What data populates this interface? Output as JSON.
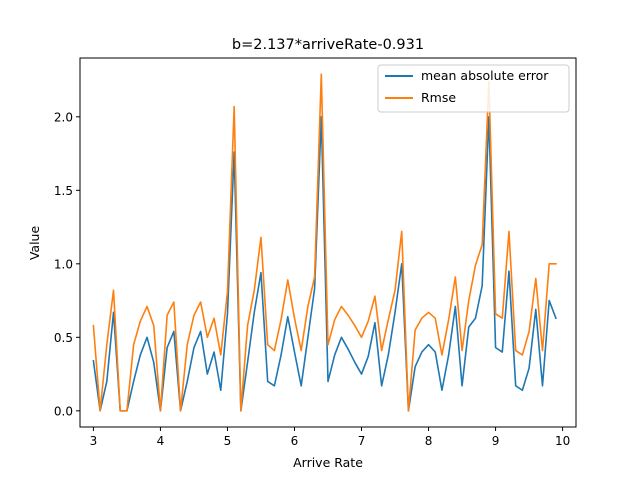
{
  "chart_data": {
    "type": "line",
    "title": "b=2.137*arriveRate-0.931",
    "xlabel": "Arrive Rate",
    "ylabel": "Value",
    "xlim": [
      2.8,
      10.2
    ],
    "ylim": [
      -0.11,
      2.4
    ],
    "xticks": [
      3,
      4,
      5,
      6,
      7,
      8,
      9,
      10
    ],
    "xtick_labels": [
      "3",
      "4",
      "5",
      "6",
      "7",
      "8",
      "9",
      "10"
    ],
    "yticks": [
      0.0,
      0.5,
      1.0,
      1.5,
      2.0
    ],
    "ytick_labels": [
      "0.0",
      "0.5",
      "1.0",
      "1.5",
      "2.0"
    ],
    "grid": false,
    "legend_position": "top-right",
    "x": [
      3.0,
      3.1,
      3.2,
      3.3,
      3.4,
      3.5,
      3.6,
      3.7,
      3.8,
      3.9,
      4.0,
      4.1,
      4.2,
      4.3,
      4.4,
      4.5,
      4.6,
      4.7,
      4.8,
      4.9,
      5.0,
      5.1,
      5.2,
      5.3,
      5.4,
      5.5,
      5.6,
      5.7,
      5.8,
      5.9,
      6.0,
      6.1,
      6.2,
      6.3,
      6.4,
      6.5,
      6.6,
      6.7,
      6.8,
      6.9,
      7.0,
      7.1,
      7.2,
      7.3,
      7.4,
      7.5,
      7.6,
      7.7,
      7.8,
      7.9,
      8.0,
      8.1,
      8.2,
      8.3,
      8.4,
      8.5,
      8.6,
      8.7,
      8.8,
      8.9,
      9.0,
      9.1,
      9.2,
      9.3,
      9.4,
      9.5,
      9.6,
      9.7,
      9.8,
      9.9
    ],
    "series": [
      {
        "name": "mean absolute error",
        "color": "#1f77b4",
        "values": [
          0.34,
          0.0,
          0.2,
          0.67,
          0.0,
          0.0,
          0.2,
          0.38,
          0.5,
          0.33,
          0.0,
          0.43,
          0.54,
          0.0,
          0.2,
          0.43,
          0.54,
          0.25,
          0.4,
          0.14,
          0.66,
          1.76,
          0.0,
          0.33,
          0.67,
          0.94,
          0.2,
          0.17,
          0.38,
          0.64,
          0.4,
          0.17,
          0.5,
          0.83,
          2.0,
          0.2,
          0.38,
          0.5,
          0.42,
          0.33,
          0.25,
          0.37,
          0.6,
          0.17,
          0.38,
          0.67,
          1.0,
          0.0,
          0.3,
          0.4,
          0.45,
          0.4,
          0.14,
          0.38,
          0.71,
          0.17,
          0.57,
          0.63,
          0.85,
          2.0,
          0.43,
          0.4,
          0.95,
          0.17,
          0.14,
          0.29,
          0.69,
          0.17,
          0.75,
          0.63
        ]
      },
      {
        "name": "Rmse",
        "color": "#ff7f0e",
        "values": [
          0.58,
          0.0,
          0.45,
          0.82,
          0.0,
          0.0,
          0.45,
          0.61,
          0.71,
          0.58,
          0.0,
          0.65,
          0.74,
          0.0,
          0.45,
          0.65,
          0.74,
          0.5,
          0.63,
          0.38,
          0.81,
          2.07,
          0.0,
          0.58,
          0.82,
          1.18,
          0.45,
          0.41,
          0.62,
          0.89,
          0.63,
          0.41,
          0.71,
          0.91,
          2.29,
          0.45,
          0.62,
          0.71,
          0.65,
          0.58,
          0.5,
          0.61,
          0.78,
          0.41,
          0.62,
          0.82,
          1.22,
          0.0,
          0.55,
          0.63,
          0.67,
          0.63,
          0.38,
          0.62,
          0.91,
          0.41,
          0.75,
          0.99,
          1.13,
          2.24,
          0.66,
          0.63,
          1.22,
          0.41,
          0.38,
          0.54,
          0.9,
          0.41,
          1.0,
          1.0
        ]
      }
    ]
  }
}
